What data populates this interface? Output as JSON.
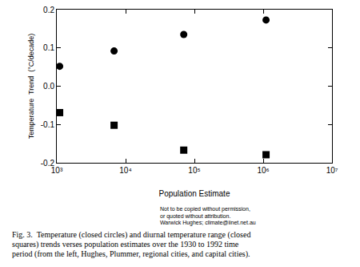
{
  "chart_data": {
    "type": "scatter",
    "x_label": "Population Estimate",
    "y_label": "Temperature  Trend  (°C/decade)",
    "x": [
      1100,
      6800,
      70000,
      1100000
    ],
    "series": [
      {
        "marker": "circle",
        "color": "#000000",
        "values": [
          0.052,
          0.092,
          0.135,
          0.173
        ]
      },
      {
        "marker": "square",
        "color": "#000000",
        "values": [
          -0.069,
          -0.102,
          -0.167,
          -0.179
        ]
      }
    ],
    "log": "x",
    "xlim": [
      1000,
      10000000
    ],
    "xticks": [
      {
        "value": 1000,
        "label": "10³"
      },
      {
        "value": 10000,
        "label": "10⁴"
      },
      {
        "value": 100000,
        "label": "10⁵"
      },
      {
        "value": 1000000,
        "label": "10⁶"
      },
      {
        "value": 10000000,
        "label": "10⁷"
      }
    ],
    "ylim": [
      -0.2,
      0.2
    ],
    "yticks": [
      -0.2,
      -0.1,
      {
        "value": 0,
        "label": "0.0"
      },
      0.1,
      0.2
    ],
    "grid": false,
    "notes": [
      "Not to be copied without permission,",
      "or quoted without attribution.",
      "Warwick Hughes; climate@iinet.net.au"
    ],
    "caption": [
      "Fig. 3.  Temperature (closed circles) and diurnal temperature range (closed",
      "squares) trends verses population estimates over the 1930 to 1992 time",
      "period (from the left, Hughes, Plummer, regional cities, and capital cities)."
    ]
  }
}
